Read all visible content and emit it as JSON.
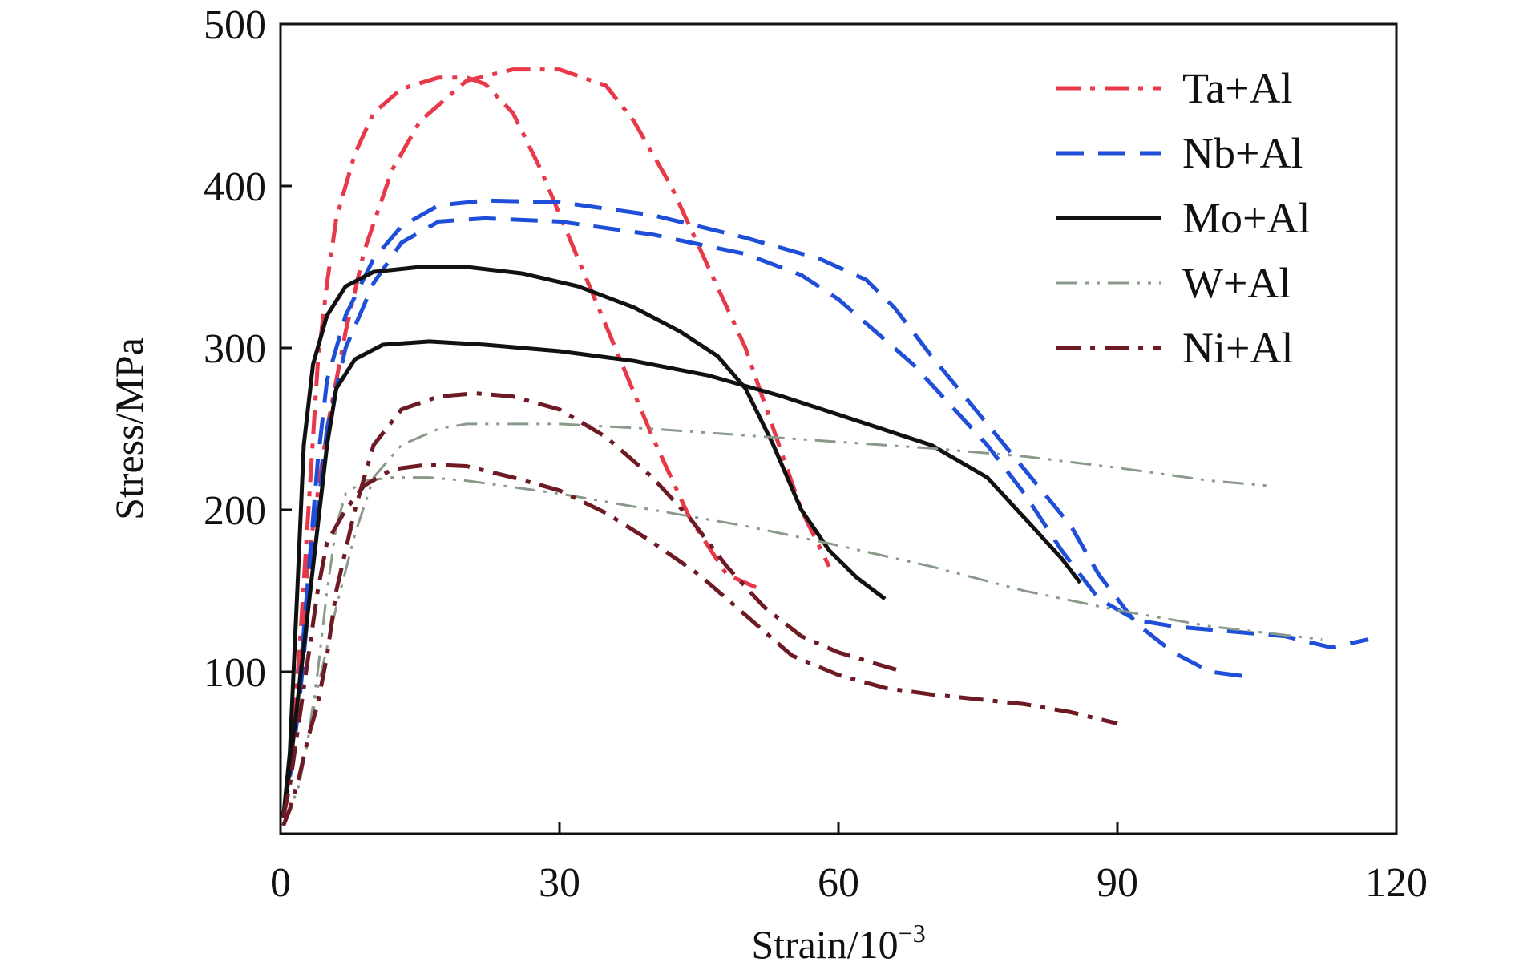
{
  "chart_data": {
    "type": "line",
    "xlabel": "Strain/10",
    "xlabel_exponent": "−3",
    "ylabel": "Stress/MPa",
    "xlim": [
      0,
      120
    ],
    "ylim": [
      0,
      500
    ],
    "xticks": [
      0,
      30,
      60,
      90,
      120
    ],
    "xtick_labels": [
      "0",
      "30",
      "60",
      "90",
      "120"
    ],
    "yticks": [
      100,
      200,
      300,
      400,
      500
    ],
    "ytick_labels": [
      "100",
      "200",
      "300",
      "400",
      "500"
    ],
    "grid": false,
    "legend_position": "top-right",
    "series": [
      {
        "name": "Ta+Al",
        "color": "#e8394b",
        "style": "dash-dot",
        "curves": [
          [
            [
              0.3,
              10
            ],
            [
              1,
              40
            ],
            [
              2,
              110
            ],
            [
              3,
              200
            ],
            [
              4,
              290
            ],
            [
              5,
              340
            ],
            [
              6,
              380
            ],
            [
              8,
              420
            ],
            [
              10,
              445
            ],
            [
              13,
              460
            ],
            [
              17,
              467
            ],
            [
              20,
              467
            ],
            [
              22,
              463
            ],
            [
              25,
              445
            ],
            [
              28,
              410
            ],
            [
              32,
              355
            ],
            [
              36,
              300
            ],
            [
              40,
              245
            ],
            [
              44,
              195
            ],
            [
              48,
              160
            ],
            [
              52,
              150
            ]
          ],
          [
            [
              0.3,
              10
            ],
            [
              1,
              40
            ],
            [
              2,
              100
            ],
            [
              3,
              170
            ],
            [
              4,
              210
            ],
            [
              5,
              250
            ],
            [
              7,
              310
            ],
            [
              9,
              360
            ],
            [
              12,
              410
            ],
            [
              15,
              440
            ],
            [
              20,
              465
            ],
            [
              25,
              472
            ],
            [
              30,
              472
            ],
            [
              35,
              462
            ],
            [
              38,
              440
            ],
            [
              42,
              400
            ],
            [
              46,
              350
            ],
            [
              50,
              300
            ],
            [
              53,
              250
            ],
            [
              56,
              200
            ],
            [
              59,
              165
            ]
          ]
        ]
      },
      {
        "name": "Nb+Al",
        "color": "#1f4fd8",
        "style": "dash",
        "curves": [
          [
            [
              0.3,
              10
            ],
            [
              1,
              35
            ],
            [
              2,
              90
            ],
            [
              3,
              160
            ],
            [
              4,
              230
            ],
            [
              5,
              280
            ],
            [
              7,
              320
            ],
            [
              10,
              355
            ],
            [
              13,
              375
            ],
            [
              17,
              388
            ],
            [
              22,
              391
            ],
            [
              30,
              390
            ],
            [
              40,
              382
            ],
            [
              50,
              368
            ],
            [
              58,
              355
            ],
            [
              63,
              342
            ],
            [
              66,
              325
            ],
            [
              70,
              295
            ],
            [
              75,
              260
            ],
            [
              80,
              225
            ],
            [
              85,
              190
            ],
            [
              88,
              160
            ],
            [
              92,
              130
            ],
            [
              96,
              112
            ],
            [
              100,
              100
            ],
            [
              104,
              97
            ]
          ],
          [
            [
              0.3,
              10
            ],
            [
              1,
              35
            ],
            [
              2,
              80
            ],
            [
              3,
              140
            ],
            [
              4,
              200
            ],
            [
              5,
              250
            ],
            [
              7,
              300
            ],
            [
              10,
              340
            ],
            [
              13,
              365
            ],
            [
              17,
              378
            ],
            [
              22,
              380
            ],
            [
              30,
              378
            ],
            [
              40,
              370
            ],
            [
              50,
              358
            ],
            [
              56,
              345
            ],
            [
              60,
              330
            ],
            [
              64,
              310
            ],
            [
              68,
              290
            ],
            [
              72,
              265
            ],
            [
              76,
              240
            ],
            [
              80,
              210
            ],
            [
              84,
              175
            ],
            [
              88,
              145
            ],
            [
              92,
              132
            ],
            [
              96,
              128
            ],
            [
              100,
              126
            ],
            [
              108,
              122
            ],
            [
              113,
              115
            ],
            [
              117,
              120
            ]
          ]
        ]
      },
      {
        "name": "Mo+Al",
        "color": "#111111",
        "style": "solid",
        "curves": [
          [
            [
              0.3,
              10
            ],
            [
              1,
              50
            ],
            [
              1.8,
              150
            ],
            [
              2.5,
              240
            ],
            [
              3.5,
              290
            ],
            [
              5,
              320
            ],
            [
              7,
              338
            ],
            [
              10,
              347
            ],
            [
              15,
              350
            ],
            [
              20,
              350
            ],
            [
              26,
              346
            ],
            [
              32,
              338
            ],
            [
              38,
              325
            ],
            [
              43,
              310
            ],
            [
              47,
              295
            ],
            [
              50,
              275
            ],
            [
              53,
              240
            ],
            [
              56,
              200
            ],
            [
              59,
              175
            ],
            [
              62,
              158
            ],
            [
              65,
              145
            ]
          ],
          [
            [
              0.3,
              10
            ],
            [
              1,
              40
            ],
            [
              2,
              90
            ],
            [
              3,
              140
            ],
            [
              4,
              190
            ],
            [
              5,
              240
            ],
            [
              6,
              275
            ],
            [
              8,
              293
            ],
            [
              11,
              302
            ],
            [
              16,
              304
            ],
            [
              22,
              302
            ],
            [
              30,
              298
            ],
            [
              38,
              292
            ],
            [
              46,
              283
            ],
            [
              54,
              270
            ],
            [
              62,
              255
            ],
            [
              70,
              240
            ],
            [
              76,
              220
            ],
            [
              80,
              195
            ],
            [
              84,
              170
            ],
            [
              86,
              155
            ]
          ]
        ]
      },
      {
        "name": "W+Al",
        "color": "#8a9a8a",
        "style": "dash-dot-dot",
        "curves": [
          [
            [
              0.3,
              5
            ],
            [
              1,
              15
            ],
            [
              2,
              30
            ],
            [
              3,
              60
            ],
            [
              4,
              100
            ],
            [
              5,
              150
            ],
            [
              6,
              190
            ],
            [
              7,
              210
            ],
            [
              9,
              218
            ],
            [
              12,
              220
            ],
            [
              16,
              220
            ],
            [
              20,
              218
            ],
            [
              30,
              210
            ],
            [
              40,
              200
            ],
            [
              50,
              190
            ],
            [
              60,
              178
            ],
            [
              70,
              165
            ],
            [
              80,
              150
            ],
            [
              90,
              138
            ],
            [
              100,
              128
            ],
            [
              112,
              120
            ]
          ],
          [
            [
              0.3,
              5
            ],
            [
              1,
              15
            ],
            [
              2,
              30
            ],
            [
              3,
              60
            ],
            [
              4,
              90
            ],
            [
              6,
              140
            ],
            [
              8,
              185
            ],
            [
              10,
              220
            ],
            [
              13,
              240
            ],
            [
              17,
              250
            ],
            [
              20,
              253
            ],
            [
              30,
              253
            ],
            [
              40,
              250
            ],
            [
              50,
              246
            ],
            [
              60,
              242
            ],
            [
              70,
              238
            ],
            [
              80,
              233
            ],
            [
              90,
              226
            ],
            [
              100,
              218
            ],
            [
              106,
              215
            ]
          ]
        ]
      },
      {
        "name": "Ni+Al",
        "color": "#6e1a24",
        "style": "dash-dot",
        "curves": [
          [
            [
              0.3,
              10
            ],
            [
              1,
              30
            ],
            [
              2,
              70
            ],
            [
              3,
              110
            ],
            [
              4,
              150
            ],
            [
              5,
              180
            ],
            [
              7,
              200
            ],
            [
              9,
              215
            ],
            [
              12,
              225
            ],
            [
              16,
              228
            ],
            [
              20,
              227
            ],
            [
              25,
              220
            ],
            [
              30,
              212
            ],
            [
              35,
              198
            ],
            [
              40,
              180
            ],
            [
              45,
              160
            ],
            [
              50,
              135
            ],
            [
              55,
              110
            ],
            [
              60,
              98
            ],
            [
              65,
              90
            ],
            [
              70,
              86
            ],
            [
              75,
              83
            ],
            [
              80,
              80
            ],
            [
              85,
              75
            ],
            [
              90,
              68
            ]
          ],
          [
            [
              0.3,
              5
            ],
            [
              1,
              15
            ],
            [
              2,
              35
            ],
            [
              3,
              60
            ],
            [
              4,
              80
            ],
            [
              5,
              110
            ],
            [
              6,
              150
            ],
            [
              8,
              200
            ],
            [
              10,
              240
            ],
            [
              13,
              262
            ],
            [
              17,
              270
            ],
            [
              21,
              272
            ],
            [
              25,
              270
            ],
            [
              30,
              262
            ],
            [
              35,
              245
            ],
            [
              40,
              220
            ],
            [
              44,
              195
            ],
            [
              48,
              165
            ],
            [
              52,
              140
            ],
            [
              56,
              122
            ],
            [
              60,
              112
            ],
            [
              64,
              105
            ],
            [
              67,
              100
            ]
          ]
        ]
      }
    ]
  }
}
